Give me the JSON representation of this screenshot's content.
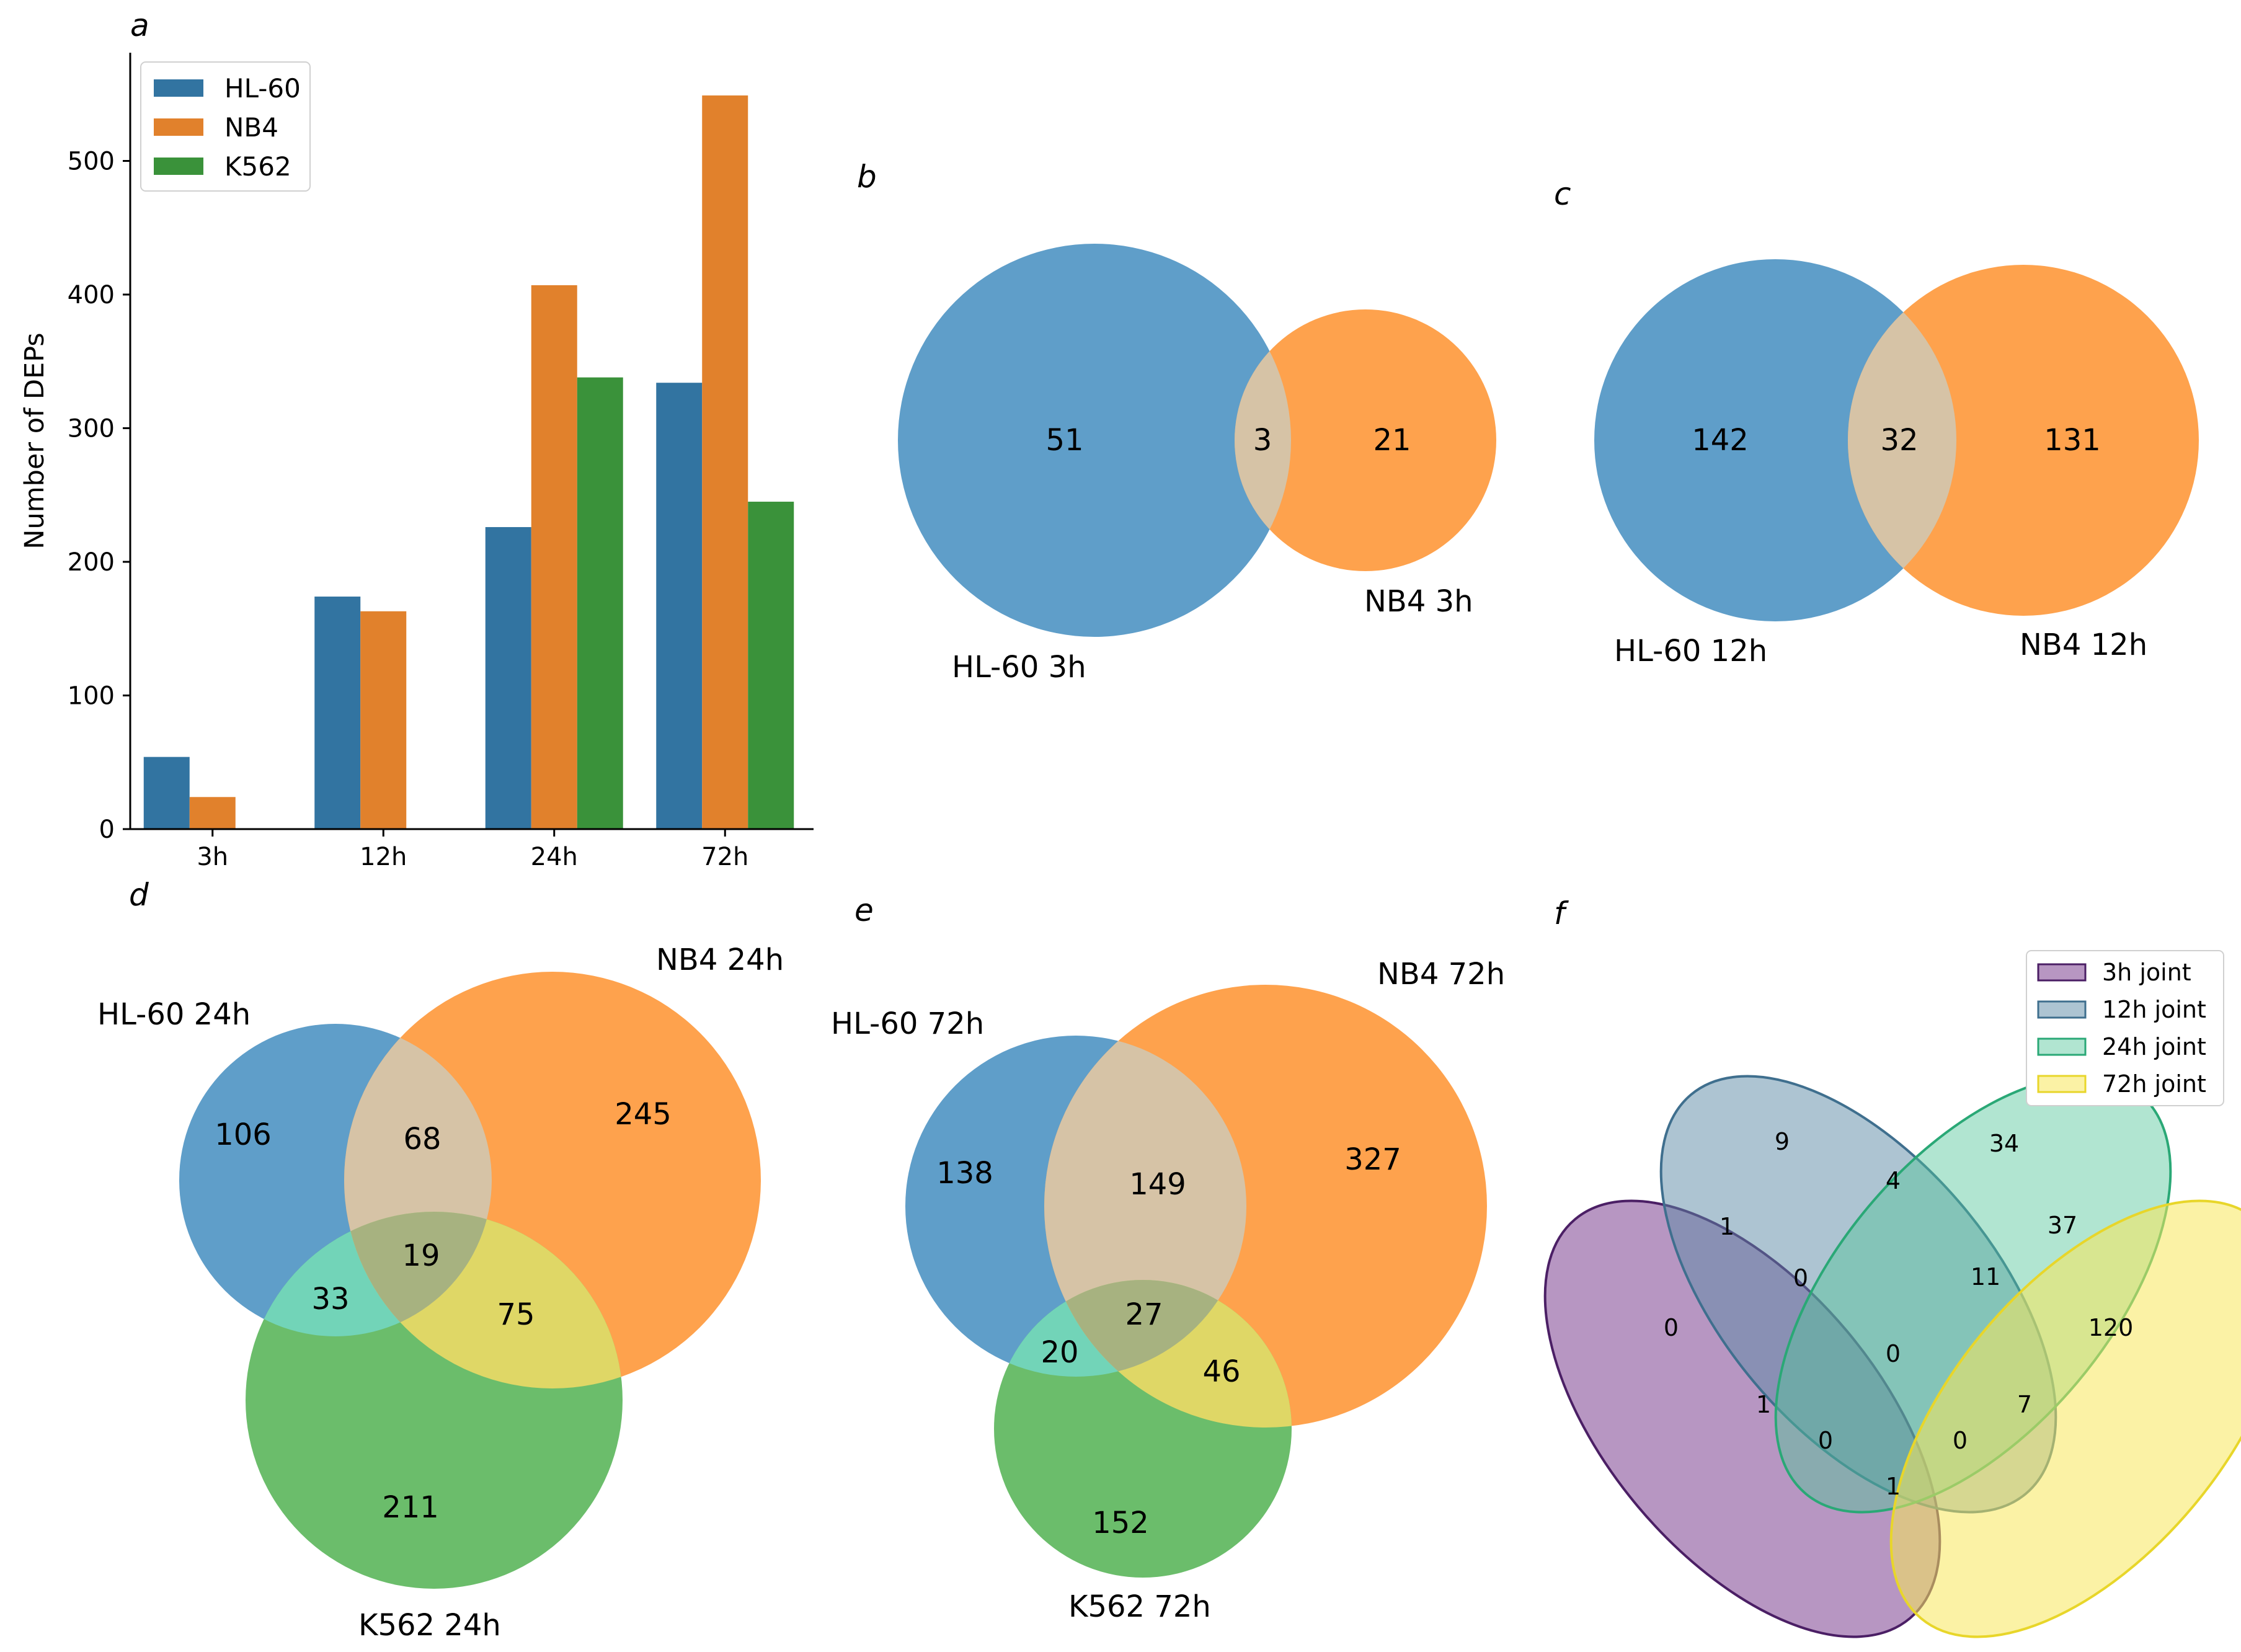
{
  "colors": {
    "hl60": "#3274a1",
    "nb4": "#e1812c",
    "k562": "#3a923a",
    "venn_blue": "#5f9ec9",
    "venn_orange": "#fea24d",
    "venn_green": "#6bbd6b",
    "venn4": [
      "#7b3f8f",
      "#5b8aa6",
      "#52c59a",
      "#f7e85b"
    ],
    "venn4_edges": [
      "#4b1f65",
      "#3f6f8e",
      "#2aa876",
      "#e8d62a"
    ]
  },
  "panels": {
    "a": "a",
    "b": "b",
    "c": "c",
    "d": "d",
    "e": "e",
    "f": "f"
  },
  "chart_data": [
    {
      "type": "bar",
      "panel": "a",
      "categories": [
        "3h",
        "12h",
        "24h",
        "72h"
      ],
      "series": [
        {
          "name": "HL-60",
          "values": [
            54,
            174,
            226,
            334
          ]
        },
        {
          "name": "NB4",
          "values": [
            24,
            163,
            407,
            549
          ]
        },
        {
          "name": "K562",
          "values": [
            0,
            0,
            338,
            245
          ]
        }
      ],
      "ylabel": "Number of DEPs",
      "ylim": [
        0,
        577
      ],
      "yticks": [
        0,
        100,
        200,
        300,
        400,
        500
      ],
      "legend_placement": "top-left",
      "grid": false
    },
    {
      "type": "venn2",
      "panel": "b",
      "sets": [
        "HL-60 3h",
        "NB4 3h"
      ],
      "only_a": "51",
      "overlap": "3",
      "only_b": "21"
    },
    {
      "type": "venn2",
      "panel": "c",
      "sets": [
        "HL-60 12h",
        "NB4 12h"
      ],
      "only_a": "142",
      "overlap": "32",
      "only_b": "131"
    },
    {
      "type": "venn3",
      "panel": "d",
      "sets": [
        "HL-60 24h",
        "NB4 24h",
        "K562 24h"
      ],
      "only_a": "106",
      "only_b": "245",
      "only_c": "211",
      "ab": "68",
      "ac": "33",
      "bc": "75",
      "abc": "19"
    },
    {
      "type": "venn3",
      "panel": "e",
      "sets": [
        "HL-60 72h",
        "NB4 72h",
        "K562 72h"
      ],
      "only_a": "138",
      "only_b": "327",
      "only_c": "152",
      "ab": "149",
      "ac": "20",
      "bc": "46",
      "abc": "27"
    },
    {
      "type": "venn4",
      "panel": "f",
      "sets": [
        "3h joint",
        "12h joint",
        "24h joint",
        "72h joint"
      ],
      "regions": [
        "9",
        "34",
        "4",
        "1",
        "37",
        "0",
        "11",
        "0",
        "0",
        "120",
        "1",
        "7",
        "0",
        "0",
        "1"
      ]
    }
  ]
}
